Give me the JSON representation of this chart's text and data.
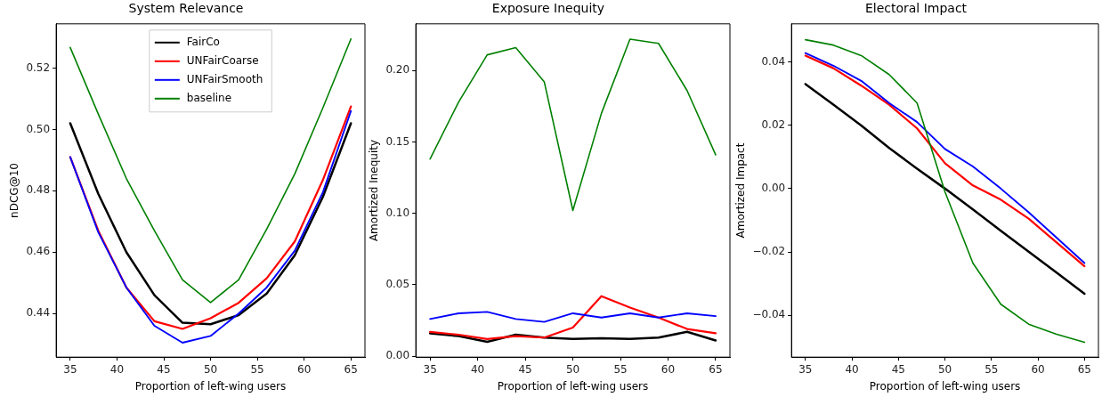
{
  "chart_data": [
    {
      "type": "line",
      "title": "System Relevance",
      "xlabel": "Proportion of left-wing users",
      "ylabel": "nDCG@10",
      "x": [
        35,
        38,
        41,
        44,
        47,
        50,
        53,
        56,
        59,
        62,
        65
      ],
      "xlim": [
        33.5,
        66.5
      ],
      "xticks": [
        35,
        40,
        45,
        50,
        55,
        60,
        65
      ],
      "ylim": [
        0.4258,
        0.5344
      ],
      "yticks": [
        {
          "value": 0.44,
          "label": "0.44"
        },
        {
          "value": 0.46,
          "label": "0.46"
        },
        {
          "value": 0.48,
          "label": "0.48"
        },
        {
          "value": 0.5,
          "label": "0.50"
        },
        {
          "value": 0.52,
          "label": "0.52"
        }
      ],
      "grid": false,
      "legend": "top",
      "marker": "none",
      "line_style": "solid",
      "series": [
        {
          "name": "FairCo",
          "color": "#000000",
          "values": [
            0.502,
            0.479,
            0.46,
            0.446,
            0.437,
            0.4365,
            0.4395,
            0.4465,
            0.459,
            0.478,
            0.502
          ]
        },
        {
          "name": "UNFairCoarse",
          "color": "#ff0000",
          "values": [
            0.491,
            0.467,
            0.4485,
            0.4375,
            0.435,
            0.4385,
            0.4435,
            0.4515,
            0.4635,
            0.4835,
            0.5075
          ]
        },
        {
          "name": "UNFairSmooth",
          "color": "#0000ff",
          "values": [
            0.491,
            0.4665,
            0.4485,
            0.436,
            0.4305,
            0.4327,
            0.44,
            0.4485,
            0.4605,
            0.4795,
            0.506
          ]
        },
        {
          "name": "baseline",
          "color": "#008000",
          "values": [
            0.5267,
            0.505,
            0.484,
            0.467,
            0.451,
            0.4436,
            0.451,
            0.4675,
            0.4855,
            0.507,
            0.5295
          ]
        }
      ]
    },
    {
      "type": "line",
      "title": "Exposure Inequity",
      "xlabel": "Proportion of left-wing users",
      "ylabel": "Amortized Inequity",
      "x": [
        35,
        38,
        41,
        44,
        47,
        50,
        53,
        56,
        59,
        62,
        65
      ],
      "xlim": [
        33.5,
        66.5
      ],
      "xticks": [
        35,
        40,
        45,
        50,
        55,
        60,
        65
      ],
      "ylim": [
        -0.0007,
        0.2327
      ],
      "yticks": [
        {
          "value": 0,
          "label": "0.00"
        },
        {
          "value": 0.05,
          "label": "0.05"
        },
        {
          "value": 0.1,
          "label": "0.10"
        },
        {
          "value": 0.15,
          "label": "0.15"
        },
        {
          "value": 0.2,
          "label": "0.20"
        }
      ],
      "grid": false,
      "legend": false,
      "marker": "none",
      "line_style": "solid",
      "series": [
        {
          "color": "#000000",
          "values": [
            0.016,
            0.014,
            0.01,
            0.015,
            0.013,
            0.012,
            0.0125,
            0.012,
            0.013,
            0.017,
            0.011
          ]
        },
        {
          "color": "#ff0000",
          "values": [
            0.017,
            0.015,
            0.012,
            0.014,
            0.013,
            0.02,
            0.042,
            0.034,
            0.027,
            0.019,
            0.016
          ]
        },
        {
          "color": "#0000ff",
          "values": [
            0.026,
            0.03,
            0.031,
            0.026,
            0.024,
            0.03,
            0.027,
            0.03,
            0.027,
            0.03,
            0.028
          ]
        },
        {
          "color": "#008000",
          "values": [
            0.138,
            0.178,
            0.211,
            0.216,
            0.192,
            0.102,
            0.17,
            0.222,
            0.219,
            0.186,
            0.141
          ]
        }
      ]
    },
    {
      "type": "line",
      "title": "Electoral Impact",
      "xlabel": "Proportion of left-wing users",
      "ylabel": "Amortized Impact",
      "x": [
        35,
        38,
        41,
        44,
        47,
        50,
        53,
        56,
        59,
        62,
        65
      ],
      "xlim": [
        33.5,
        66.5
      ],
      "xticks": [
        35,
        40,
        45,
        50,
        55,
        60,
        65
      ],
      "ylim": [
        -0.0532,
        0.052
      ],
      "yticks": [
        {
          "value": -0.04,
          "label": "−0.04"
        },
        {
          "value": -0.02,
          "label": "−0.02"
        },
        {
          "value": 0,
          "label": "0.00"
        },
        {
          "value": 0.02,
          "label": "0.02"
        },
        {
          "value": 0.04,
          "label": "0.04"
        }
      ],
      "grid": false,
      "legend": false,
      "marker": "none",
      "line_style": "solid",
      "series": [
        {
          "color": "#000000",
          "values": [
            0.033,
            0.0265,
            0.0199,
            0.0128,
            0.0063,
            0,
            -0.0066,
            -0.0133,
            -0.0199,
            -0.0265,
            -0.0332
          ]
        },
        {
          "color": "#ff0000",
          "values": [
            0.042,
            0.038,
            0.0325,
            0.0265,
            0.019,
            0.008,
            0.001,
            -0.0035,
            -0.0095,
            -0.017,
            -0.0245
          ]
        },
        {
          "color": "#0000ff",
          "values": [
            0.0428,
            0.0388,
            0.034,
            0.027,
            0.021,
            0.0125,
            0.007,
            0,
            -0.0075,
            -0.0155,
            -0.0235
          ]
        },
        {
          "color": "#008000",
          "values": [
            0.047,
            0.0453,
            0.042,
            0.036,
            0.027,
            -0.001,
            -0.0235,
            -0.0365,
            -0.0428,
            -0.046,
            -0.0485
          ]
        }
      ]
    }
  ]
}
